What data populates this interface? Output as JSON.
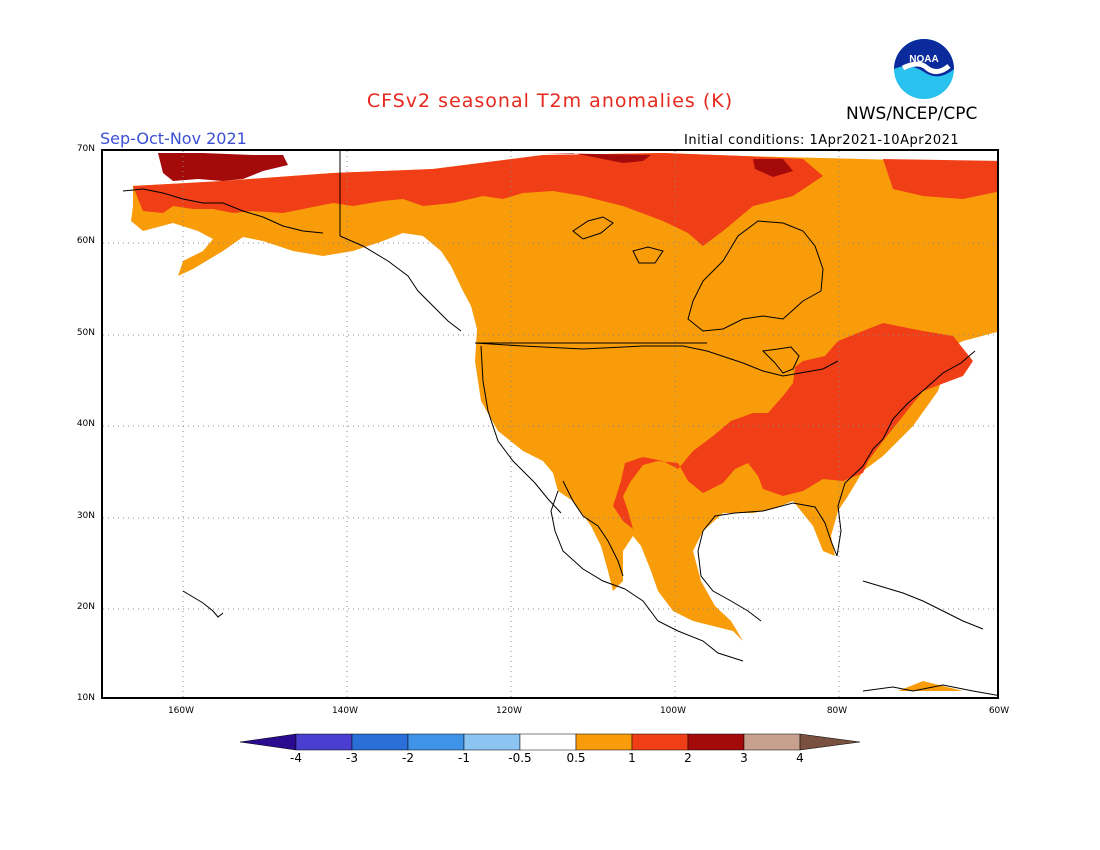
{
  "header": {
    "title": "CFSv2 seasonal T2m anomalies (K)",
    "org": "NWS/NCEP/CPC",
    "season": "Sep-Oct-Nov 2021",
    "initial_conditions": "Initial conditions: 1Apr2021-10Apr2021",
    "logo_text": "NOAA"
  },
  "axes": {
    "lat_ticks": [
      "70N",
      "60N",
      "50N",
      "40N",
      "30N",
      "20N",
      "10N"
    ],
    "lon_ticks": [
      "160W",
      "140W",
      "120W",
      "100W",
      "80W",
      "60W"
    ]
  },
  "colorbar": {
    "labels": [
      "-4",
      "-3",
      "-2",
      "-1",
      "-0.5",
      "0.5",
      "1",
      "2",
      "3",
      "4"
    ],
    "colors": [
      "#2a0a8e",
      "#4a3ed0",
      "#2a6fd8",
      "#3f94ea",
      "#8cc4f2",
      "#ffffff",
      "#f89c0a",
      "#f03e16",
      "#a50a0a",
      "#c8a08e",
      "#7a5040"
    ]
  },
  "palette": {
    "warm1": "#f89c0a",
    "warm2": "#f03e16",
    "warm3": "#a50a0a",
    "land_line": "#000000",
    "grid": "#888888",
    "title_red": "#e8281e",
    "season_blue": "#3a4fd6"
  }
}
